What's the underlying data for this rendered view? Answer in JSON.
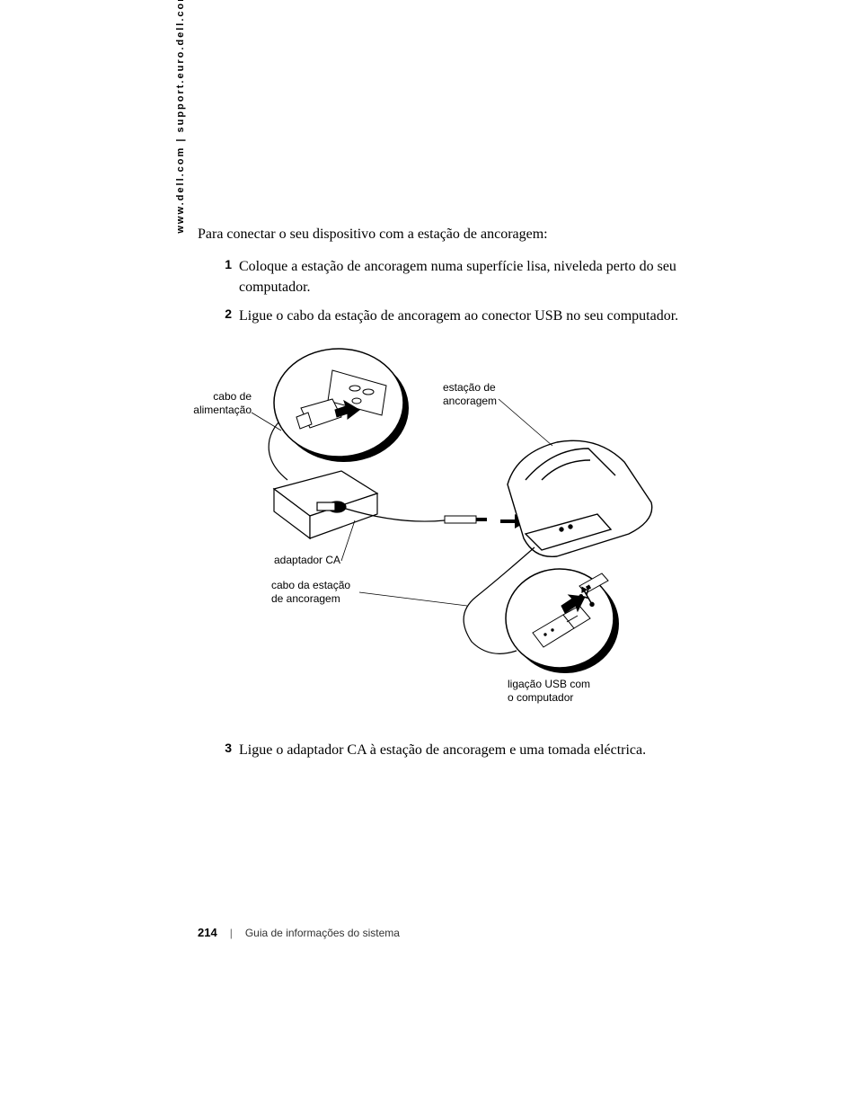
{
  "side_url": "www.dell.com | support.euro.dell.com",
  "intro": "Para conectar o seu dispositivo com a estação de ancoragem:",
  "steps": [
    {
      "num": "1",
      "text": "Coloque a estação de ancoragem numa superfície lisa, niveleda perto do seu computador."
    },
    {
      "num": "2",
      "text": "Ligue o cabo da estação de ancoragem ao conector USB no seu computador."
    },
    {
      "num": "3",
      "text": "Ligue o adaptador CA à estação de ancoragem e uma tomada eléctrica."
    }
  ],
  "callouts": {
    "power_cable": "cabo de\nalimentação",
    "dock_station": "estação de\nancoragem",
    "ac_adapter": "adaptador CA",
    "cradle_cable": "cabo da estação\nde ancoragem",
    "usb_connection": "ligação USB com\no computador"
  },
  "footer": {
    "page_num": "214",
    "title": "Guia de informações do sistema"
  },
  "diagram": {
    "colors": {
      "stroke": "#000000",
      "fill": "#ffffff",
      "shadow": "#000000"
    },
    "stroke_width": 1.2
  }
}
